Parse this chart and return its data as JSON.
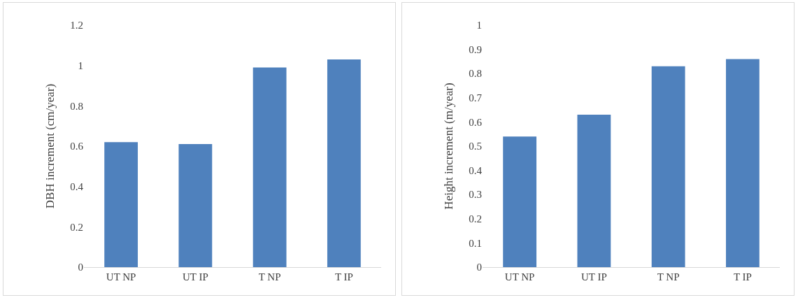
{
  "chart_data": [
    {
      "type": "bar",
      "ylabel": "DBH increment (cm/year)",
      "categories": [
        "UT NP",
        "UT IP",
        "T NP",
        "T IP"
      ],
      "values": [
        0.62,
        0.61,
        0.99,
        1.03
      ],
      "color": "#4f81bd",
      "ylim": [
        0,
        1.2
      ],
      "yticks": [
        0,
        0.2,
        0.4,
        0.6,
        0.8,
        1,
        1.2
      ],
      "grid": false
    },
    {
      "type": "bar",
      "ylabel": "Height increment (m/year)",
      "categories": [
        "UT NP",
        "UT IP",
        "T NP",
        "T IP"
      ],
      "values": [
        0.54,
        0.63,
        0.83,
        0.86
      ],
      "color": "#4f81bd",
      "ylim": [
        0,
        1
      ],
      "yticks": [
        0,
        0.1,
        0.2,
        0.3,
        0.4,
        0.5,
        0.6,
        0.7,
        0.8,
        0.9,
        1
      ],
      "grid": false
    }
  ]
}
